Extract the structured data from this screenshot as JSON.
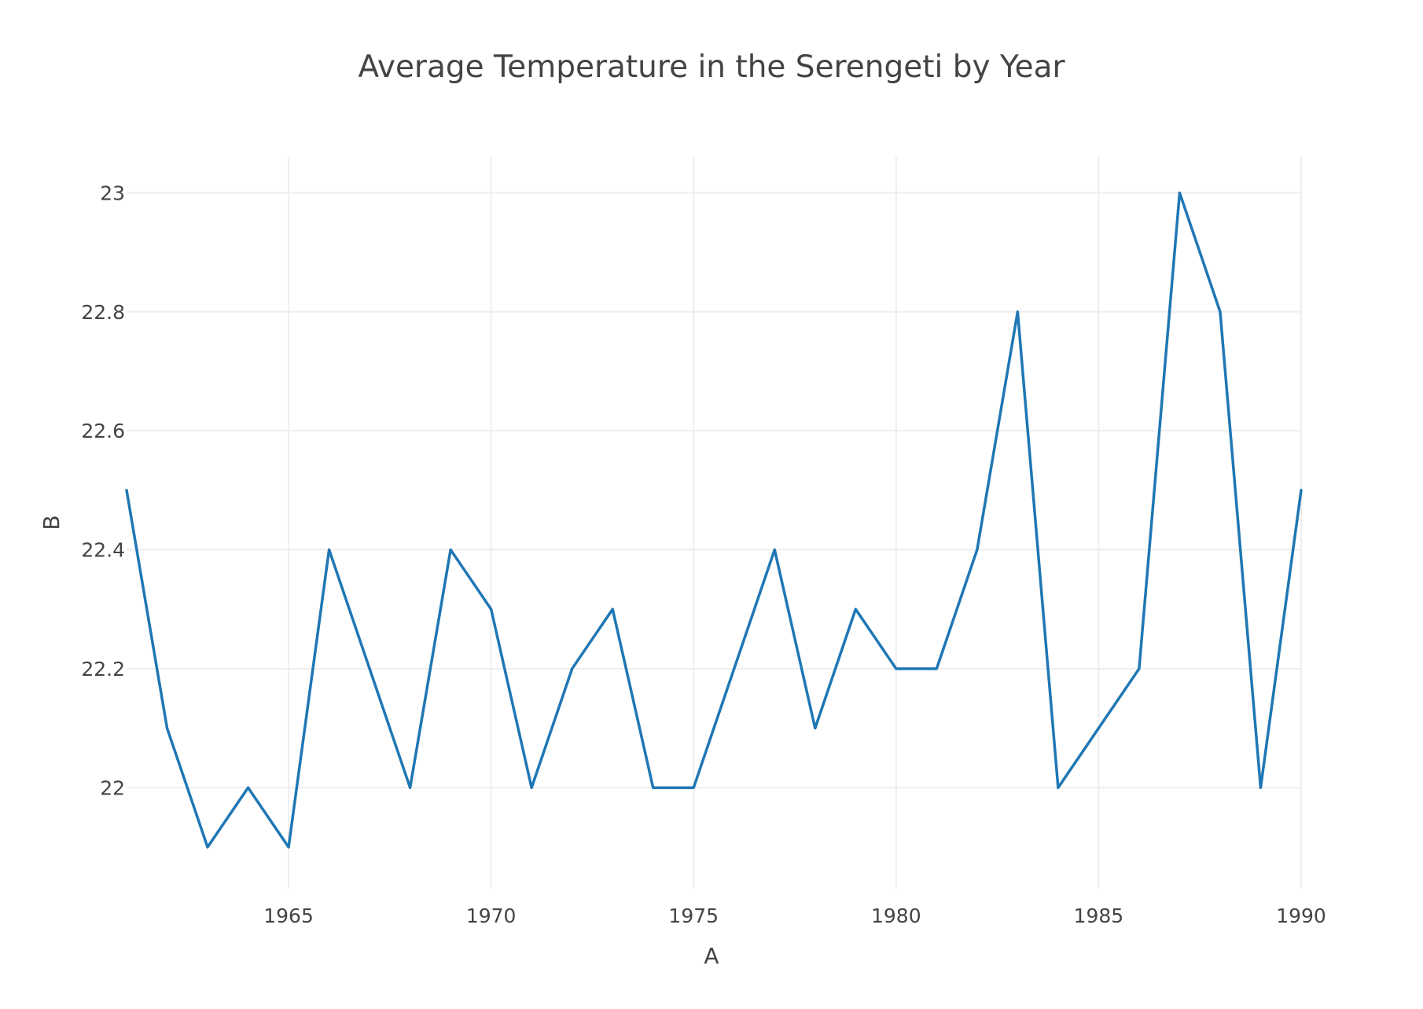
{
  "chart_data": {
    "type": "line",
    "title": "Average Temperature in the Serengeti by Year",
    "xlabel": "A",
    "ylabel": "B",
    "xlim": [
      1961,
      1990
    ],
    "ylim": [
      21.83,
      23.06
    ],
    "x_ticks": [
      1965,
      1970,
      1975,
      1980,
      1985,
      1990
    ],
    "y_ticks": [
      22,
      22.2,
      22.4,
      22.6,
      22.8,
      23
    ],
    "grid": true,
    "legend": "none",
    "colors": {
      "line": "#1f77b4",
      "grid": "#eeeeee",
      "text": "#444444"
    },
    "series": [
      {
        "x": [
          1961,
          1962,
          1963,
          1964,
          1965,
          1966,
          1967,
          1968,
          1969,
          1970,
          1971,
          1972,
          1973,
          1974,
          1975,
          1976,
          1977,
          1978,
          1979,
          1980,
          1981,
          1982,
          1983,
          1984,
          1985,
          1986,
          1987,
          1988,
          1989,
          1990
        ],
        "values": [
          22.5,
          22.1,
          21.9,
          22.0,
          21.9,
          22.4,
          22.2,
          22.0,
          22.4,
          22.3,
          22.0,
          22.2,
          22.3,
          22.0,
          22.0,
          22.2,
          22.4,
          22.1,
          22.3,
          22.2,
          22.2,
          22.4,
          22.8,
          22.0,
          22.1,
          22.2,
          23.0,
          22.8,
          22.0,
          22.5
        ]
      }
    ]
  }
}
